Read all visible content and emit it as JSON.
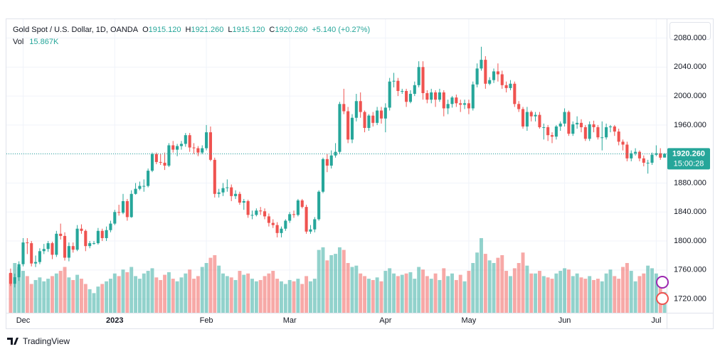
{
  "chart_data": {
    "type": "candlestick",
    "title": "Gold Spot / U.S. Dollar, 1D, OANDA",
    "legend": [
      {
        "key": "O",
        "label": "1915.120"
      },
      {
        "key": "H",
        "label": "1921.260"
      },
      {
        "key": "L",
        "label": "1915.120"
      },
      {
        "key": "C",
        "label": "1920.260"
      }
    ],
    "change_label": "+5.140 (+0.27%)",
    "volume_title": "Vol",
    "volume_label": "15.867K",
    "last_price_label": "1920.260",
    "countdown": "15:00:28",
    "brand": "TradingView",
    "up_color": "#26a69a",
    "down_color": "#ef5350",
    "ylim": [
      1701,
      2107
    ],
    "yticks": [
      {
        "value": 1720,
        "label": "1720.000"
      },
      {
        "value": 1760,
        "label": "1760.000"
      },
      {
        "value": 1800,
        "label": "1800.000"
      },
      {
        "value": 1840,
        "label": "1840.000"
      },
      {
        "value": 1880,
        "label": "1880.000"
      },
      {
        "value": 1920,
        "label": "1920.000"
      },
      {
        "value": 1960,
        "label": "1960.000"
      },
      {
        "value": 2000,
        "label": "2000.000"
      },
      {
        "value": 2040,
        "label": "2040.000"
      },
      {
        "value": 2080,
        "label": "2080.000"
      }
    ],
    "xticks": [
      {
        "value": 3,
        "label": "Dec"
      },
      {
        "value": 25,
        "label": "2023"
      },
      {
        "value": 47,
        "label": "Feb"
      },
      {
        "value": 67,
        "label": "Mar"
      },
      {
        "value": 90,
        "label": "Apr"
      },
      {
        "value": 110,
        "label": "May"
      },
      {
        "value": 133,
        "label": "Jun"
      },
      {
        "value": 155,
        "label": "Jul"
      }
    ],
    "grid": true,
    "candles": [
      [
        1756,
        1762,
        1738,
        1741
      ],
      [
        1741,
        1755,
        1736,
        1750
      ],
      [
        1750,
        1772,
        1745,
        1768
      ],
      [
        1768,
        1804,
        1765,
        1798
      ],
      [
        1798,
        1804,
        1782,
        1797
      ],
      [
        1797,
        1800,
        1765,
        1769
      ],
      [
        1769,
        1780,
        1764,
        1771
      ],
      [
        1771,
        1790,
        1768,
        1786
      ],
      [
        1786,
        1796,
        1782,
        1789
      ],
      [
        1789,
        1800,
        1785,
        1797
      ],
      [
        1797,
        1799,
        1775,
        1781
      ],
      [
        1781,
        1814,
        1778,
        1810
      ],
      [
        1810,
        1824,
        1802,
        1807
      ],
      [
        1807,
        1812,
        1773,
        1777
      ],
      [
        1777,
        1798,
        1772,
        1793
      ],
      [
        1793,
        1798,
        1784,
        1788
      ],
      [
        1788,
        1822,
        1786,
        1817
      ],
      [
        1817,
        1823,
        1810,
        1814
      ],
      [
        1814,
        1816,
        1786,
        1793
      ],
      [
        1793,
        1800,
        1790,
        1797
      ],
      [
        1797,
        1800,
        1795,
        1797
      ],
      [
        1797,
        1818,
        1795,
        1814
      ],
      [
        1814,
        1817,
        1800,
        1804
      ],
      [
        1804,
        1820,
        1800,
        1815
      ],
      [
        1815,
        1828,
        1812,
        1824
      ],
      [
        1824,
        1843,
        1822,
        1840
      ],
      [
        1840,
        1850,
        1835,
        1839
      ],
      [
        1839,
        1865,
        1837,
        1855
      ],
      [
        1855,
        1858,
        1828,
        1833
      ],
      [
        1833,
        1870,
        1832,
        1865
      ],
      [
        1865,
        1880,
        1864,
        1872
      ],
      [
        1872,
        1882,
        1870,
        1876
      ],
      [
        1876,
        1885,
        1868,
        1876
      ],
      [
        1876,
        1900,
        1874,
        1897
      ],
      [
        1897,
        1922,
        1895,
        1920
      ],
      [
        1920,
        1922,
        1906,
        1909
      ],
      [
        1909,
        1920,
        1905,
        1908
      ],
      [
        1908,
        1922,
        1898,
        1904
      ],
      [
        1904,
        1935,
        1902,
        1932
      ],
      [
        1932,
        1938,
        1922,
        1926
      ],
      [
        1926,
        1934,
        1917,
        1931
      ],
      [
        1931,
        1938,
        1926,
        1934
      ],
      [
        1934,
        1949,
        1930,
        1946
      ],
      [
        1946,
        1949,
        1923,
        1929
      ],
      [
        1929,
        1935,
        1920,
        1928
      ],
      [
        1928,
        1931,
        1917,
        1922
      ],
      [
        1922,
        1932,
        1920,
        1928
      ],
      [
        1928,
        1960,
        1925,
        1950
      ],
      [
        1950,
        1958,
        1910,
        1912
      ],
      [
        1912,
        1915,
        1860,
        1865
      ],
      [
        1865,
        1872,
        1860,
        1867
      ],
      [
        1867,
        1880,
        1862,
        1873
      ],
      [
        1873,
        1885,
        1868,
        1874
      ],
      [
        1874,
        1878,
        1855,
        1862
      ],
      [
        1862,
        1870,
        1858,
        1865
      ],
      [
        1865,
        1868,
        1850,
        1853
      ],
      [
        1853,
        1858,
        1843,
        1855
      ],
      [
        1855,
        1857,
        1832,
        1836
      ],
      [
        1836,
        1842,
        1830,
        1836
      ],
      [
        1836,
        1845,
        1834,
        1842
      ],
      [
        1842,
        1847,
        1836,
        1841
      ],
      [
        1841,
        1845,
        1830,
        1834
      ],
      [
        1834,
        1838,
        1820,
        1825
      ],
      [
        1825,
        1830,
        1818,
        1822
      ],
      [
        1822,
        1826,
        1805,
        1811
      ],
      [
        1811,
        1820,
        1805,
        1817
      ],
      [
        1817,
        1830,
        1814,
        1828
      ],
      [
        1828,
        1840,
        1825,
        1837
      ],
      [
        1837,
        1842,
        1832,
        1836
      ],
      [
        1836,
        1858,
        1834,
        1856
      ],
      [
        1856,
        1858,
        1845,
        1847
      ],
      [
        1847,
        1850,
        1810,
        1813
      ],
      [
        1813,
        1822,
        1810,
        1816
      ],
      [
        1816,
        1833,
        1812,
        1830
      ],
      [
        1830,
        1870,
        1828,
        1868
      ],
      [
        1868,
        1915,
        1866,
        1913
      ],
      [
        1913,
        1920,
        1895,
        1904
      ],
      [
        1904,
        1925,
        1900,
        1918
      ],
      [
        1918,
        1935,
        1915,
        1923
      ],
      [
        1923,
        1992,
        1920,
        1989
      ],
      [
        1989,
        2010,
        1975,
        1979
      ],
      [
        1979,
        1985,
        1935,
        1940
      ],
      [
        1940,
        1975,
        1935,
        1970
      ],
      [
        1970,
        2003,
        1965,
        1993
      ],
      [
        1993,
        2005,
        1970,
        1978
      ],
      [
        1978,
        1980,
        1950,
        1956
      ],
      [
        1956,
        1975,
        1952,
        1973
      ],
      [
        1973,
        1978,
        1958,
        1963
      ],
      [
        1963,
        1985,
        1960,
        1980
      ],
      [
        1980,
        1985,
        1962,
        1969
      ],
      [
        1969,
        1990,
        1950,
        1984
      ],
      [
        1984,
        2025,
        1980,
        2020
      ],
      [
        2020,
        2032,
        2012,
        2021
      ],
      [
        2021,
        2025,
        2000,
        2007
      ],
      [
        2007,
        2010,
        2003,
        2007
      ],
      [
        2007,
        2010,
        1985,
        1992
      ],
      [
        1992,
        2008,
        1990,
        2003
      ],
      [
        2003,
        2020,
        2000,
        2015
      ],
      [
        2015,
        2048,
        2012,
        2040
      ],
      [
        2040,
        2048,
        1995,
        2004
      ],
      [
        2004,
        2008,
        1990,
        1995
      ],
      [
        1995,
        2010,
        1990,
        2005
      ],
      [
        2005,
        2008,
        1985,
        1995
      ],
      [
        1995,
        2010,
        1992,
        2005
      ],
      [
        2005,
        2008,
        1972,
        1983
      ],
      [
        1983,
        1995,
        1975,
        1989
      ],
      [
        1989,
        2000,
        1984,
        1998
      ],
      [
        1998,
        2002,
        1985,
        1990
      ],
      [
        1990,
        1995,
        1978,
        1988
      ],
      [
        1988,
        1995,
        1982,
        1990
      ],
      [
        1990,
        1995,
        1975,
        1983
      ],
      [
        1983,
        2020,
        1980,
        2016
      ],
      [
        2016,
        2045,
        2012,
        2038
      ],
      [
        2038,
        2068,
        2035,
        2050
      ],
      [
        2050,
        2055,
        2010,
        2017
      ],
      [
        2017,
        2026,
        2015,
        2022
      ],
      [
        2022,
        2038,
        2018,
        2034
      ],
      [
        2034,
        2045,
        2020,
        2030
      ],
      [
        2030,
        2035,
        2010,
        2015
      ],
      [
        2015,
        2020,
        2005,
        2011
      ],
      [
        2011,
        2022,
        2008,
        2017
      ],
      [
        2017,
        2020,
        1985,
        1989
      ],
      [
        1989,
        1993,
        1978,
        1982
      ],
      [
        1982,
        1985,
        1955,
        1958
      ],
      [
        1958,
        1985,
        1952,
        1978
      ],
      [
        1978,
        1980,
        1965,
        1972
      ],
      [
        1972,
        1978,
        1965,
        1974
      ],
      [
        1974,
        1978,
        1955,
        1957
      ],
      [
        1957,
        1962,
        1940,
        1957
      ],
      [
        1957,
        1960,
        1938,
        1946
      ],
      [
        1946,
        1950,
        1935,
        1944
      ],
      [
        1944,
        1960,
        1940,
        1958
      ],
      [
        1958,
        1965,
        1952,
        1962
      ],
      [
        1962,
        1983,
        1958,
        1978
      ],
      [
        1978,
        1980,
        1945,
        1948
      ],
      [
        1948,
        1965,
        1945,
        1961
      ],
      [
        1961,
        1972,
        1955,
        1963
      ],
      [
        1963,
        1968,
        1950,
        1957
      ],
      [
        1957,
        1960,
        1938,
        1941
      ],
      [
        1941,
        1965,
        1938,
        1961
      ],
      [
        1961,
        1966,
        1950,
        1957
      ],
      [
        1957,
        1960,
        1940,
        1943
      ],
      [
        1943,
        1965,
        1925,
        1943
      ],
      [
        1943,
        1962,
        1940,
        1957
      ],
      [
        1957,
        1960,
        1950,
        1958
      ],
      [
        1958,
        1960,
        1945,
        1951
      ],
      [
        1951,
        1955,
        1932,
        1937
      ],
      [
        1937,
        1940,
        1925,
        1933
      ],
      [
        1933,
        1937,
        1910,
        1914
      ],
      [
        1914,
        1925,
        1910,
        1921
      ],
      [
        1921,
        1928,
        1918,
        1923
      ],
      [
        1923,
        1925,
        1910,
        1914
      ],
      [
        1914,
        1918,
        1903,
        1908
      ],
      [
        1908,
        1912,
        1893,
        1908
      ],
      [
        1908,
        1922,
        1905,
        1919
      ],
      [
        1919,
        1932,
        1917,
        1921
      ],
      [
        1921,
        1928,
        1912,
        1915
      ],
      [
        1915.12,
        1921.26,
        1915.12,
        1920.26
      ]
    ],
    "volumes": [
      30,
      38,
      35,
      32,
      28,
      22,
      25,
      27,
      24,
      26,
      28,
      30,
      32,
      35,
      27,
      25,
      29,
      26,
      22,
      18,
      15,
      20,
      22,
      24,
      26,
      30,
      28,
      33,
      31,
      35,
      28,
      26,
      30,
      32,
      34,
      27,
      25,
      29,
      31,
      26,
      24,
      27,
      30,
      33,
      26,
      28,
      35,
      38,
      42,
      44,
      36,
      30,
      28,
      27,
      25,
      32,
      29,
      30,
      26,
      24,
      25,
      28,
      30,
      32,
      26,
      24,
      22,
      25,
      24,
      26,
      22,
      28,
      24,
      26,
      48,
      50,
      40,
      44,
      45,
      50,
      48,
      38,
      35,
      36,
      30,
      28,
      26,
      25,
      27,
      24,
      32,
      34,
      30,
      28,
      29,
      30,
      31,
      26,
      35,
      33,
      28,
      26,
      30,
      25,
      34,
      28,
      30,
      25,
      29,
      24,
      32,
      38,
      46,
      57,
      45,
      40,
      38,
      42,
      44,
      32,
      28,
      34,
      38,
      46,
      36,
      30,
      30,
      32,
      28,
      27,
      26,
      30,
      32,
      34,
      33,
      28,
      30,
      27,
      26,
      28,
      25,
      26,
      24,
      30,
      33,
      28,
      26,
      35,
      38,
      32,
      24,
      28,
      30,
      36,
      34,
      30,
      24,
      15.867
    ]
  }
}
